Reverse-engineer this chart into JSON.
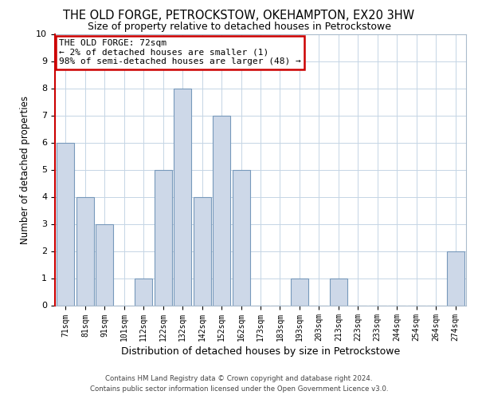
{
  "title": "THE OLD FORGE, PETROCKSTOW, OKEHAMPTON, EX20 3HW",
  "subtitle": "Size of property relative to detached houses in Petrockstowe",
  "xlabel": "Distribution of detached houses by size in Petrockstowe",
  "ylabel": "Number of detached properties",
  "footer_line1": "Contains HM Land Registry data © Crown copyright and database right 2024.",
  "footer_line2": "Contains public sector information licensed under the Open Government Licence v3.0.",
  "categories": [
    "71sqm",
    "81sqm",
    "91sqm",
    "101sqm",
    "112sqm",
    "122sqm",
    "132sqm",
    "142sqm",
    "152sqm",
    "162sqm",
    "173sqm",
    "183sqm",
    "193sqm",
    "203sqm",
    "213sqm",
    "223sqm",
    "233sqm",
    "244sqm",
    "254sqm",
    "264sqm",
    "274sqm"
  ],
  "values": [
    6,
    4,
    3,
    0,
    1,
    5,
    8,
    4,
    7,
    5,
    0,
    0,
    1,
    0,
    1,
    0,
    0,
    0,
    0,
    0,
    2
  ],
  "bar_color": "#cdd8e8",
  "bar_edge_color": "#7799bb",
  "annotation_line1": "THE OLD FORGE: 72sqm",
  "annotation_line2": "← 2% of detached houses are smaller (1)",
  "annotation_line3": "98% of semi-detached houses are larger (48) →",
  "annotation_box_color": "#ffffff",
  "annotation_box_edge_color": "#cc0000",
  "ylim": [
    0,
    10
  ],
  "yticks": [
    0,
    1,
    2,
    3,
    4,
    5,
    6,
    7,
    8,
    9,
    10
  ],
  "background_color": "#ffffff",
  "grid_color": "#c5d5e5",
  "title_fontsize": 10.5,
  "subtitle_fontsize": 9,
  "xlabel_fontsize": 9,
  "ylabel_fontsize": 8.5,
  "annotation_fontsize": 8
}
